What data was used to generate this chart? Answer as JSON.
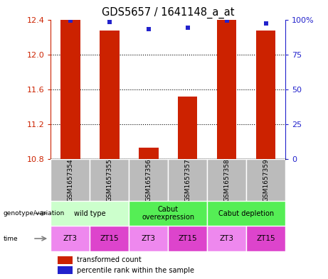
{
  "title": "GDS5657 / 1641148_a_at",
  "samples": [
    "GSM1657354",
    "GSM1657355",
    "GSM1657356",
    "GSM1657357",
    "GSM1657358",
    "GSM1657359"
  ],
  "transformed_counts": [
    12.4,
    12.27,
    10.93,
    11.52,
    12.4,
    12.27
  ],
  "percentile_ranks": [
    99,
    98,
    93,
    94,
    99,
    97
  ],
  "ylim_left": [
    10.8,
    12.4
  ],
  "ylim_right": [
    0,
    100
  ],
  "yticks_left": [
    10.8,
    11.2,
    11.6,
    12.0,
    12.4
  ],
  "yticks_right": [
    0,
    25,
    50,
    75,
    100
  ],
  "bar_color": "#cc2200",
  "dot_color": "#2222cc",
  "genotype_groups": [
    {
      "label": "wild type",
      "start": 0,
      "end": 2,
      "color": "#ccffcc"
    },
    {
      "label": "Cabut\noverexpression",
      "start": 2,
      "end": 4,
      "color": "#55ee55"
    },
    {
      "label": "Cabut depletion",
      "start": 4,
      "end": 6,
      "color": "#55ee55"
    }
  ],
  "time_labels": [
    "ZT3",
    "ZT15",
    "ZT3",
    "ZT15",
    "ZT3",
    "ZT15"
  ],
  "time_colors": [
    "#ee88ee",
    "#dd44cc",
    "#ee88ee",
    "#dd44cc",
    "#ee88ee",
    "#dd44cc"
  ],
  "sample_bg_color": "#bbbbbb",
  "legend_red_label": "transformed count",
  "legend_blue_label": "percentile rank within the sample",
  "left_axis_color": "#cc2200",
  "right_axis_color": "#2222cc",
  "fig_bg": "#ffffff"
}
